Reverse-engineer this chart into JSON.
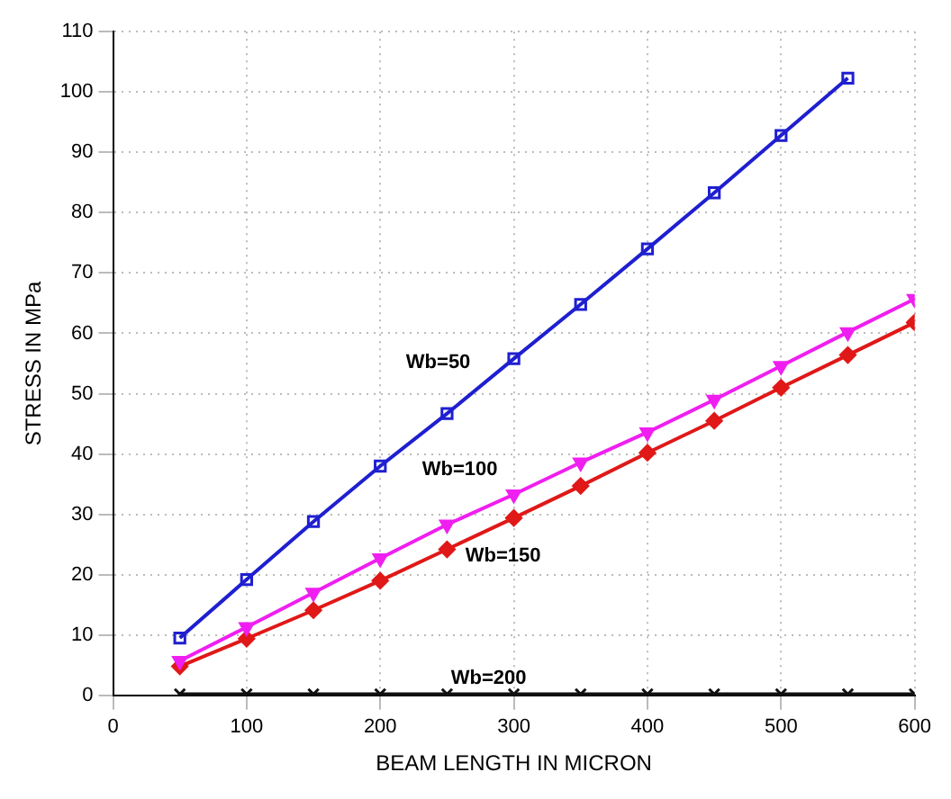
{
  "chart_data": {
    "type": "line",
    "xlabel": "BEAM LENGTH IN MICRON",
    "ylabel": "STRESS IN MPa",
    "xlim": [
      0,
      600
    ],
    "xticks": [
      0,
      100,
      200,
      300,
      400,
      500,
      600
    ],
    "ylim": [
      0,
      110
    ],
    "yticks": [
      0,
      10,
      20,
      30,
      40,
      50,
      60,
      70,
      80,
      90,
      100,
      110
    ],
    "grid": true,
    "x": [
      50,
      100,
      150,
      200,
      250,
      300,
      350,
      400,
      450,
      500,
      550,
      600
    ],
    "series": [
      {
        "name": "Wb=50",
        "color": "#1f1fd0",
        "marker": "square",
        "values": [
          9.5,
          19.2,
          28.8,
          38,
          46.7,
          55.8,
          64.8,
          74,
          83.3,
          92.8,
          102.3,
          null
        ]
      },
      {
        "name": "Wb=100",
        "color": "#f01ef0",
        "marker": "triangle",
        "values": [
          5.7,
          11.3,
          17,
          22.7,
          28.3,
          33.3,
          38.6,
          43.6,
          49,
          54.6,
          60.2,
          65.7
        ]
      },
      {
        "name": "Wb=150",
        "color": "#e01818",
        "marker": "diamond",
        "values": [
          4.8,
          9.4,
          14.1,
          19,
          24.2,
          29.4,
          34.7,
          40.2,
          45.5,
          51,
          56.4,
          61.8
        ]
      },
      {
        "name": "Wb=200",
        "color": "#101010",
        "marker": "cross",
        "values": [
          0.2,
          0.2,
          0.2,
          0.2,
          0.2,
          0.2,
          0.2,
          0.2,
          0.2,
          0.2,
          0.2,
          0.2
        ]
      }
    ],
    "legend": false
  }
}
